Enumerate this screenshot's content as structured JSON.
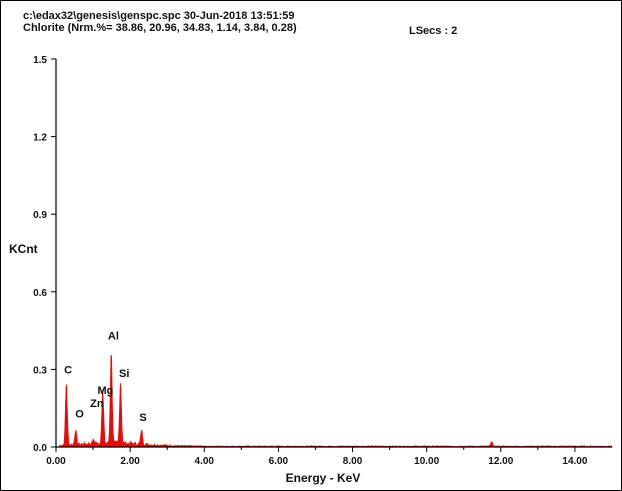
{
  "header": {
    "line1": "c:\\edax32\\genesis\\genspc.spc  30-Jun-2018 13:51:59",
    "line2": "Chlorite (Nrm.%= 38.86, 20.96, 34.83, 1.14, 3.84, 0.28)",
    "lsecs": "LSecs : 2"
  },
  "chart_data": {
    "type": "line",
    "title": "",
    "xlabel": "Energy - KeV",
    "ylabel": "KCnt",
    "xlim": [
      0,
      15
    ],
    "ylim": [
      0,
      1.5
    ],
    "x_ticks": [
      {
        "value": 0,
        "label": "0.00"
      },
      {
        "value": 2,
        "label": "2.00"
      },
      {
        "value": 4,
        "label": "4.00"
      },
      {
        "value": 6,
        "label": "6.00"
      },
      {
        "value": 8,
        "label": "8.00"
      },
      {
        "value": 10,
        "label": "10.00"
      },
      {
        "value": 12,
        "label": "12.00"
      },
      {
        "value": 14,
        "label": "14.00"
      }
    ],
    "y_ticks": [
      {
        "value": 0,
        "label": "0.0"
      },
      {
        "value": 0.3,
        "label": "0.3"
      },
      {
        "value": 0.6,
        "label": "0.6"
      },
      {
        "value": 0.9,
        "label": "0.9"
      },
      {
        "value": 1.2,
        "label": "1.2"
      },
      {
        "value": 1.5,
        "label": "1.5"
      }
    ],
    "grid": false,
    "color": "#dd1111",
    "peaks": [
      {
        "energy": 0.28,
        "counts": 0.235,
        "label": "C"
      },
      {
        "energy": 0.53,
        "counts": 0.055,
        "label": "O"
      },
      {
        "energy": 1.02,
        "counts": 0.015,
        "label": "Zn"
      },
      {
        "energy": 1.26,
        "counts": 0.205,
        "label": "Mg"
      },
      {
        "energy": 1.49,
        "counts": 0.355,
        "label": "Al"
      },
      {
        "energy": 1.74,
        "counts": 0.235,
        "label": "Si"
      },
      {
        "energy": 2.31,
        "counts": 0.055,
        "label": "S"
      }
    ],
    "extra_peaks": [
      {
        "energy": 11.75,
        "counts": 0.018
      }
    ],
    "label_positions": [
      {
        "label": "C",
        "energy": 0.22,
        "counts": 0.285
      },
      {
        "label": "O",
        "energy": 0.52,
        "counts": 0.115
      },
      {
        "label": "Zn",
        "energy": 0.92,
        "counts": 0.155
      },
      {
        "label": "Mg",
        "energy": 1.12,
        "counts": 0.205
      },
      {
        "label": "Al",
        "energy": 1.4,
        "counts": 0.415
      },
      {
        "label": "Si",
        "energy": 1.7,
        "counts": 0.27
      },
      {
        "label": "S",
        "energy": 2.25,
        "counts": 0.1
      }
    ]
  }
}
